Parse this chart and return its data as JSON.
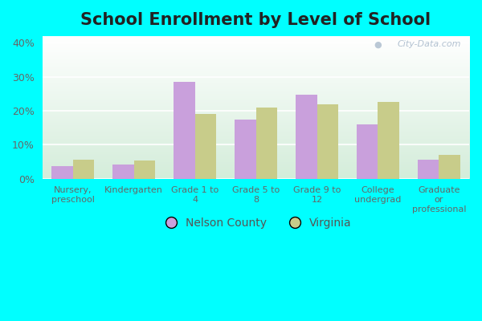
{
  "title": "School Enrollment by Level of School",
  "categories": [
    "Nursery,\npreschool",
    "Kindergarten",
    "Grade 1 to\n4",
    "Grade 5 to\n8",
    "Grade 9 to\n12",
    "College\nundergrad",
    "Graduate\nor\nprofessional"
  ],
  "nelson_county": [
    3.8,
    4.1,
    28.5,
    17.5,
    24.7,
    16.0,
    5.5
  ],
  "virginia": [
    5.5,
    5.3,
    19.0,
    21.0,
    21.8,
    22.5,
    7.0
  ],
  "nelson_color": "#c9a0dc",
  "virginia_color": "#c8cc8a",
  "bar_width": 0.35,
  "ylim": [
    0,
    42
  ],
  "yticks": [
    0,
    10,
    20,
    30,
    40
  ],
  "outer_bg": "#00ffff",
  "grid_color": "#ffffff",
  "title_fontsize": 15,
  "legend_nelson": "Nelson County",
  "legend_virginia": "Virginia",
  "watermark": "City-Data.com",
  "bg_top": "#ffffff",
  "bg_bottom": "#d4edda"
}
